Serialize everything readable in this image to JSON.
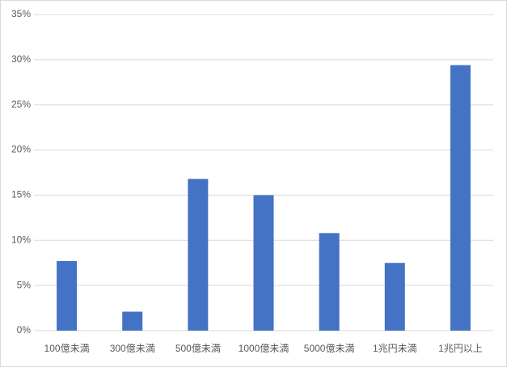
{
  "chart_data": {
    "type": "bar",
    "categories": [
      "100億未満",
      "300億未満",
      "500億未満",
      "1000億未満",
      "5000億未満",
      "1兆円未満",
      "1兆円以上"
    ],
    "values": [
      7.7,
      2.1,
      16.8,
      15.0,
      10.8,
      7.5,
      29.4
    ],
    "color": "#4472c4",
    "ylim": [
      0,
      35
    ],
    "yticks": [
      {
        "value": 0,
        "label": "0%"
      },
      {
        "value": 5,
        "label": "5%"
      },
      {
        "value": 10,
        "label": "10%"
      },
      {
        "value": 15,
        "label": "15%"
      },
      {
        "value": 20,
        "label": "20%"
      },
      {
        "value": 25,
        "label": "25%"
      },
      {
        "value": 30,
        "label": "30%"
      },
      {
        "value": 35,
        "label": "35%"
      }
    ],
    "grid": true
  }
}
